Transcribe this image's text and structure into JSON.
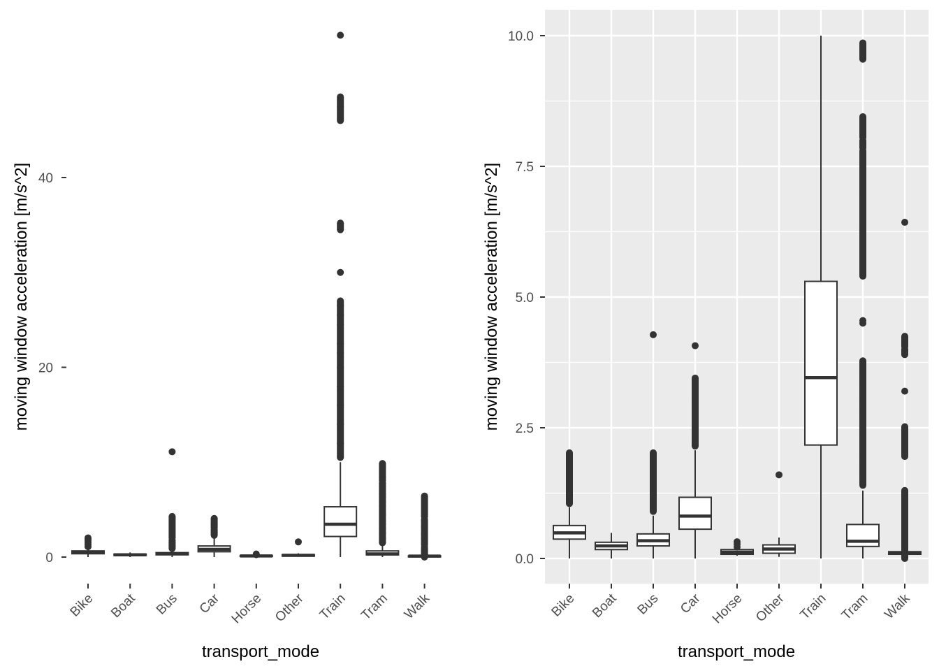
{
  "chart_data": [
    {
      "type": "boxplot",
      "panel": "left",
      "theme": "blank-white",
      "grid": false,
      "title": "",
      "xlabel": "transport_mode",
      "ylabel": "moving window acceleration [m/s^2]",
      "categories": [
        "Bike",
        "Boat",
        "Bus",
        "Car",
        "Horse",
        "Other",
        "Train",
        "Tram",
        "Walk"
      ],
      "yticks": [
        0,
        20,
        40
      ],
      "ytick_labels": [
        "0",
        "20",
        "40"
      ],
      "ylim": [
        -2.5,
        57
      ],
      "boxes": [
        {
          "name": "Bike",
          "min": 0.0,
          "q1": 0.35,
          "median": 0.5,
          "q3": 0.65,
          "max": 1.0,
          "outliers": [
            1.1,
            1.3,
            1.5,
            1.7,
            1.9,
            2.02
          ]
        },
        {
          "name": "Boat",
          "min": 0.0,
          "q1": 0.17,
          "median": 0.24,
          "q3": 0.31,
          "max": 0.49,
          "outliers": []
        },
        {
          "name": "Bus",
          "min": 0.0,
          "q1": 0.24,
          "median": 0.34,
          "q3": 0.47,
          "max": 0.82,
          "outliers": [
            0.9,
            1.2,
            1.5,
            1.8,
            2.02,
            4.28,
            11.1
          ]
        },
        {
          "name": "Car",
          "min": 0.0,
          "q1": 0.56,
          "median": 0.81,
          "q3": 1.17,
          "max": 2.07,
          "outliers": [
            2.3,
            2.6,
            2.9,
            3.07,
            3.45,
            4.07
          ]
        },
        {
          "name": "Horse",
          "min": 0.05,
          "q1": 0.08,
          "median": 0.12,
          "q3": 0.17,
          "max": 0.2,
          "outliers": [
            0.25,
            0.32
          ]
        },
        {
          "name": "Other",
          "min": 0.03,
          "q1": 0.1,
          "median": 0.18,
          "q3": 0.26,
          "max": 0.4,
          "outliers": [
            1.6
          ]
        },
        {
          "name": "Train",
          "min": 0.0,
          "q1": 2.17,
          "median": 3.46,
          "q3": 5.3,
          "max": 10.0,
          "outliers": [
            10.5,
            12,
            14,
            16,
            18,
            20,
            21.5,
            22.5,
            24.5,
            25.5,
            26.5,
            27,
            30,
            34.5,
            35.2,
            46,
            47.5,
            48.5,
            55
          ]
        },
        {
          "name": "Tram",
          "min": 0.0,
          "q1": 0.23,
          "median": 0.33,
          "q3": 0.65,
          "max": 1.3,
          "outliers": [
            1.5,
            2.0,
            2.5,
            3.0,
            3.5,
            3.8,
            4.5,
            5.4,
            5.8,
            6.35,
            6.65,
            7.0,
            7.1,
            7.45,
            7.8,
            7.85,
            8.05,
            8.45,
            9.55,
            9.86
          ]
        },
        {
          "name": "Walk",
          "min": 0.0,
          "q1": 0.08,
          "median": 0.1,
          "q3": 0.13,
          "max": 0.17,
          "outliers": [
            0.0,
            0.3,
            0.6,
            0.9,
            1.1,
            1.3,
            1.95,
            2.37,
            2.5,
            3.2,
            3.9,
            4.0,
            4.25,
            6.43
          ]
        }
      ]
    },
    {
      "type": "boxplot",
      "panel": "right",
      "theme": "ggplot-grey",
      "grid": true,
      "title": "",
      "xlabel": "transport_mode",
      "ylabel": "moving window acceleration [m/s^2]",
      "categories": [
        "Bike",
        "Boat",
        "Bus",
        "Car",
        "Horse",
        "Other",
        "Train",
        "Tram",
        "Walk"
      ],
      "yticks": [
        0,
        2.5,
        5,
        7.5,
        10
      ],
      "ytick_labels": [
        "0.0",
        "2.5",
        "5.0",
        "7.5",
        "10.0"
      ],
      "ylim": [
        -0.5,
        10.5
      ],
      "boxes": [
        {
          "name": "Bike",
          "min": 0.0,
          "q1": 0.37,
          "median": 0.49,
          "q3": 0.63,
          "max": 0.98,
          "outliers": [
            1.05,
            1.2,
            1.4,
            1.6,
            1.75,
            1.87,
            2.02
          ]
        },
        {
          "name": "Boat",
          "min": 0.0,
          "q1": 0.17,
          "median": 0.24,
          "q3": 0.31,
          "max": 0.49,
          "outliers": []
        },
        {
          "name": "Bus",
          "min": 0.0,
          "q1": 0.24,
          "median": 0.34,
          "q3": 0.47,
          "max": 0.82,
          "outliers": [
            0.9,
            1.1,
            1.3,
            1.5,
            1.65,
            1.8,
            1.95,
            2.02,
            4.28
          ]
        },
        {
          "name": "Car",
          "min": 0.0,
          "q1": 0.56,
          "median": 0.81,
          "q3": 1.17,
          "max": 2.07,
          "outliers": [
            2.15,
            2.3,
            2.5,
            2.7,
            2.9,
            3.07,
            3.45,
            4.07
          ]
        },
        {
          "name": "Horse",
          "min": 0.05,
          "q1": 0.08,
          "median": 0.12,
          "q3": 0.17,
          "max": 0.2,
          "outliers": [
            0.22,
            0.27,
            0.32
          ]
        },
        {
          "name": "Other",
          "min": 0.03,
          "q1": 0.1,
          "median": 0.18,
          "q3": 0.26,
          "max": 0.4,
          "outliers": [
            1.6
          ]
        },
        {
          "name": "Train",
          "min": 0.0,
          "q1": 2.17,
          "median": 3.46,
          "q3": 5.3,
          "max": 10.0,
          "outliers": []
        },
        {
          "name": "Tram",
          "min": 0.0,
          "q1": 0.23,
          "median": 0.33,
          "q3": 0.65,
          "max": 1.3,
          "outliers": [
            1.4,
            1.6,
            1.8,
            2.0,
            2.2,
            2.4,
            2.6,
            2.8,
            3.0,
            3.2,
            3.4,
            3.55,
            3.65,
            3.78,
            4.5,
            4.55,
            5.4,
            5.82,
            6.35,
            6.65,
            6.98,
            7.1,
            7.45,
            7.8,
            7.85,
            8.0,
            8.05,
            8.45,
            9.55,
            9.86
          ]
        },
        {
          "name": "Walk",
          "min": 0.0,
          "q1": 0.08,
          "median": 0.1,
          "q3": 0.13,
          "max": 0.17,
          "outliers": [
            0.0,
            0.02,
            0.2,
            0.3,
            0.4,
            0.5,
            0.6,
            0.7,
            0.8,
            0.9,
            1.0,
            1.1,
            1.2,
            1.3,
            1.95,
            2.37,
            2.52,
            3.2,
            3.9,
            4.0,
            4.05,
            4.25,
            6.43
          ]
        }
      ]
    }
  ],
  "colors": {
    "box_line": "#333333",
    "box_fill": "#ffffff",
    "panel_bg_right": "#ebebeb",
    "grid": "#ffffff",
    "tick_label": "#4d4d4d",
    "axis_title": "#000000"
  }
}
